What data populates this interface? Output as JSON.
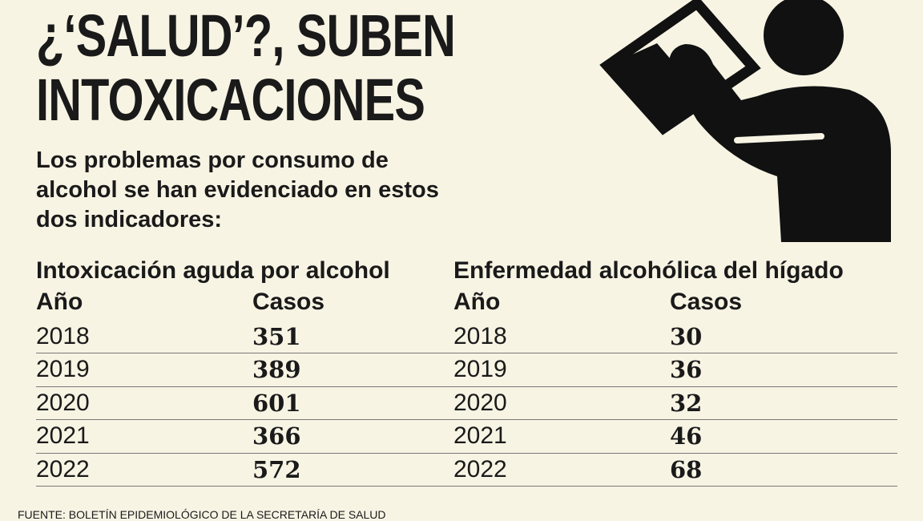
{
  "header": {
    "title_lines": [
      "¿‘SALUD’?, SUBEN",
      "INTOXICACIONES"
    ],
    "subtitle": "Los problemas por consumo de alcohol se han evidenciado en estos dos indicadores:"
  },
  "tables": [
    {
      "title": "Intoxicación aguda por alcohol",
      "columns": [
        "Año",
        "Casos"
      ],
      "rows": [
        [
          2018,
          351
        ],
        [
          2019,
          389
        ],
        [
          2020,
          601
        ],
        [
          2021,
          366
        ],
        [
          2022,
          572
        ]
      ]
    },
    {
      "title": "Enfermedad alcohólica del hígado",
      "columns": [
        "Año",
        "Casos"
      ],
      "rows": [
        [
          2018,
          30
        ],
        [
          2019,
          36
        ],
        [
          2020,
          32
        ],
        [
          2021,
          46
        ],
        [
          2022,
          68
        ]
      ]
    }
  ],
  "source": "FUENTE: BOLETÍN EPIDEMIOLÓGICO DE LA SECRETARÍA DE SALUD"
}
